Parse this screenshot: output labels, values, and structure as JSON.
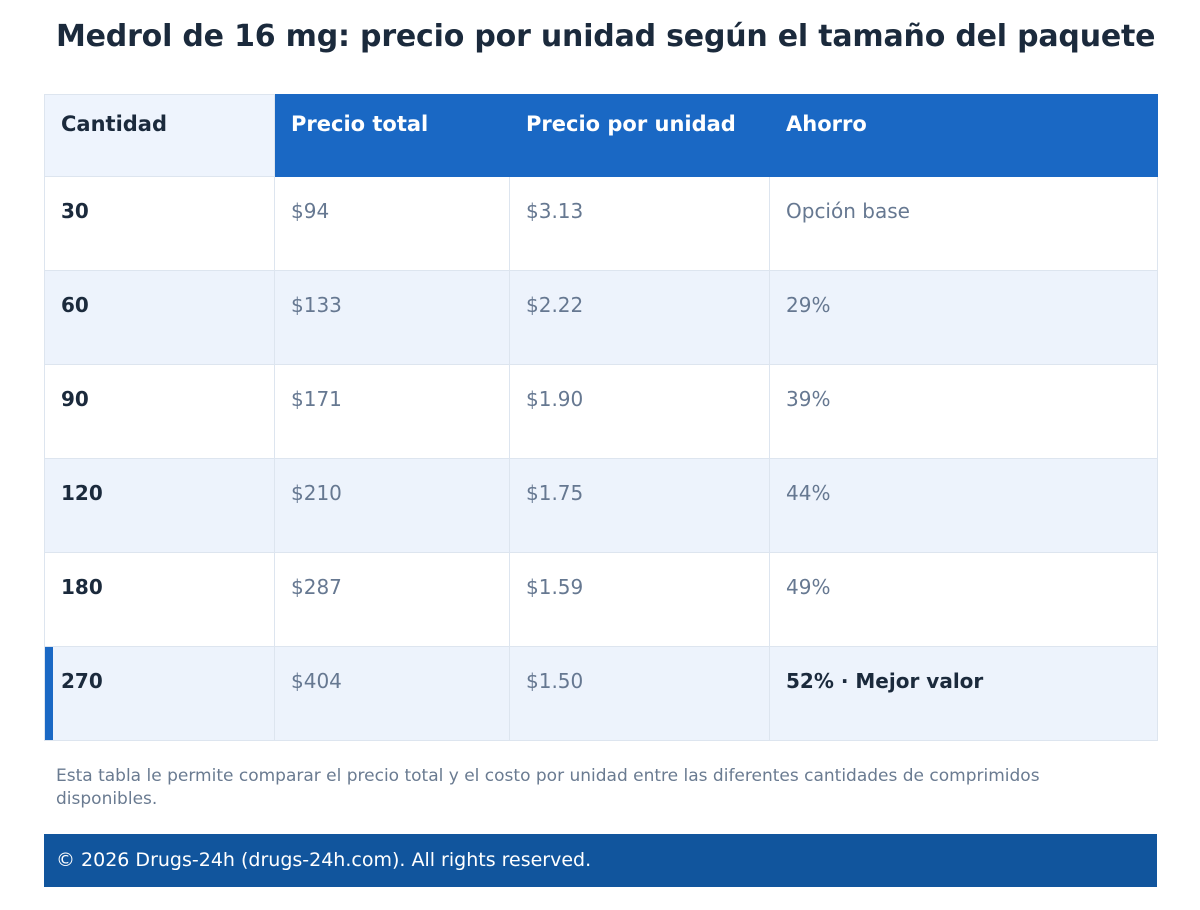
{
  "title": "Medrol de 16 mg: precio por unidad según el tamaño del paquete",
  "table": {
    "headers": [
      "Cantidad",
      "Precio total",
      "Precio por unidad",
      "Ahorro"
    ],
    "rows": [
      {
        "qty": "30",
        "total": "$94",
        "unit": "$3.13",
        "saving": "Opción base"
      },
      {
        "qty": "60",
        "total": "$133",
        "unit": "$2.22",
        "saving": "29%"
      },
      {
        "qty": "90",
        "total": "$171",
        "unit": "$1.90",
        "saving": "39%"
      },
      {
        "qty": "120",
        "total": "$210",
        "unit": "$1.75",
        "saving": "44%"
      },
      {
        "qty": "180",
        "total": "$287",
        "unit": "$1.59",
        "saving": "49%"
      },
      {
        "qty": "270",
        "total": "$404",
        "unit": "$1.50",
        "saving": "52% · Mejor valor"
      }
    ]
  },
  "note": "Esta tabla le permite comparar el precio total y el costo por unidad entre las diferentes cantidades de comprimidos disponibles.",
  "footer": "© 2026 Drugs-24h (drugs-24h.com). All rights reserved.",
  "colors": {
    "header_blue": "#1a68c4",
    "footer_blue": "#11559d",
    "row_alt": "#edf3fc",
    "text_dark": "#1b2a3c",
    "text_muted": "#667891"
  }
}
